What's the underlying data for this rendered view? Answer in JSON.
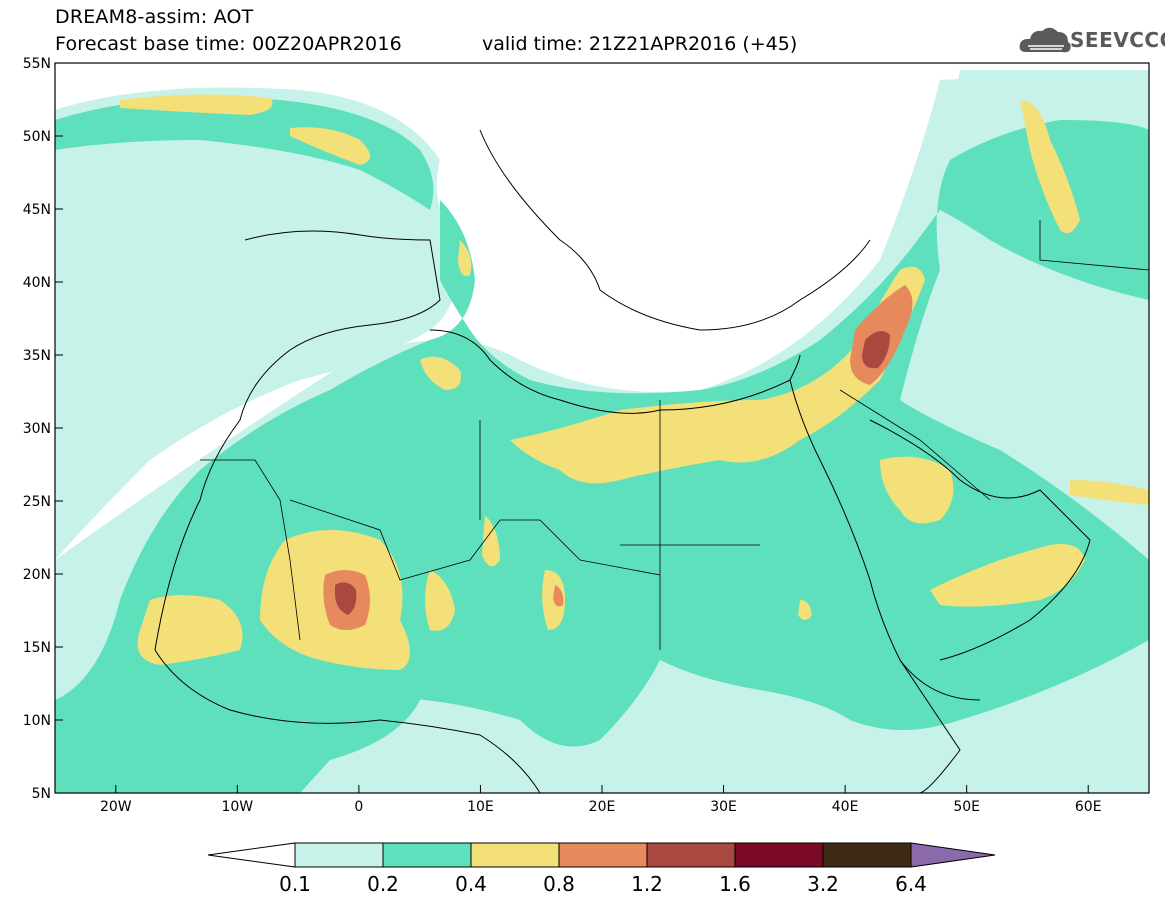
{
  "header": {
    "title": "DREAM8-assim: AOT",
    "base_time": "Forecast base time: 00Z20APR2016",
    "valid_time": "valid time: 21Z21APR2016 (+45)"
  },
  "logo": {
    "text": "SEEVCCC",
    "icon": "cloud-logo-icon"
  },
  "map": {
    "variable": "AOT",
    "lon_range": [
      -25,
      65
    ],
    "lat_range": [
      5,
      55
    ],
    "lon_ticks": [
      "20W",
      "10W",
      "0",
      "10E",
      "20E",
      "30E",
      "40E",
      "50E",
      "60E"
    ],
    "lat_ticks": [
      "55N",
      "50N",
      "45N",
      "40N",
      "35N",
      "30N",
      "25N",
      "20N",
      "15N",
      "10N",
      "5N"
    ],
    "colors": {
      "low": "#c6f2ea",
      "mid": "#5ee0bd",
      "high": "#f3e079",
      "vhigh": "#e68a5e",
      "extreme": "#a8483e"
    }
  },
  "colorbar": {
    "labels": [
      "0.1",
      "0.2",
      "0.4",
      "0.8",
      "1.2",
      "1.6",
      "3.2",
      "6.4"
    ],
    "colors": [
      "#ffffff",
      "#c6f2ea",
      "#5ee0bd",
      "#f3e079",
      "#e68a5e",
      "#a8483e",
      "#7a0a26",
      "#3e2a14",
      "#8a6aaa"
    ]
  }
}
